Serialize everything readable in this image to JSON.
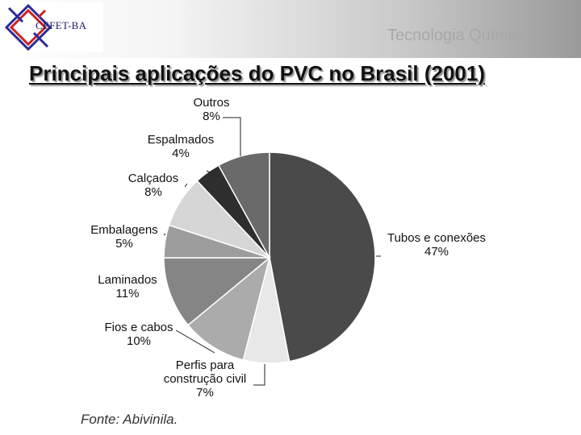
{
  "header": {
    "logo_text": "CEFET-BA",
    "course_title": "Tecnologia Química"
  },
  "slide": {
    "title": "Principais aplicações do PVC no Brasil (2001)",
    "source": "Fonte: Abivinila."
  },
  "chart_data": {
    "type": "pie",
    "title": "Principais aplicações do PVC no Brasil (2001)",
    "start": "12 o'clock",
    "direction": "clockwise",
    "slices": [
      {
        "name": "Tubos e conexões",
        "label_lines": [
          "Tubos e conexões"
        ],
        "value": 47,
        "value_label": "47%",
        "color": "#4a4a4a"
      },
      {
        "name": "Perfis para construção civil",
        "label_lines": [
          "Perfis para",
          "construção civil"
        ],
        "value": 7,
        "value_label": "7%",
        "color": "#e8e8e8"
      },
      {
        "name": "Fios e cabos",
        "label_lines": [
          "Fios e cabos"
        ],
        "value": 10,
        "value_label": "10%",
        "color": "#ababab"
      },
      {
        "name": "Laminados",
        "label_lines": [
          "Laminados"
        ],
        "value": 11,
        "value_label": "11%",
        "color": "#858585"
      },
      {
        "name": "Embalagens",
        "label_lines": [
          "Embalagens"
        ],
        "value": 5,
        "value_label": "5%",
        "color": "#9d9d9d"
      },
      {
        "name": "Calçados",
        "label_lines": [
          "Calçados"
        ],
        "value": 8,
        "value_label": "8%",
        "color": "#d6d6d6"
      },
      {
        "name": "Espalmados",
        "label_lines": [
          "Espalmados"
        ],
        "value": 4,
        "value_label": "4%",
        "color": "#2e2e2e"
      },
      {
        "name": "Outros",
        "label_lines": [
          "Outros"
        ],
        "value": 8,
        "value_label": "8%",
        "color": "#6a6a6a"
      }
    ]
  }
}
